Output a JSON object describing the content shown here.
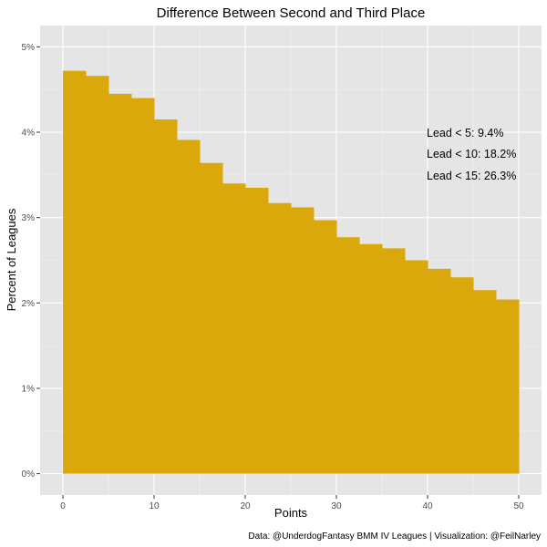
{
  "chart_data": {
    "type": "bar",
    "title": "Difference Between Second and Third Place",
    "xlabel": "Points",
    "ylabel": "Percent of Leagues",
    "caption": "Data: @UnderdogFantasy BMM IV Leagues | Visualization: @FeilNarley",
    "bin_width": 2.5,
    "x_bin_starts": [
      0,
      2.5,
      5,
      7.5,
      10,
      12.5,
      15,
      17.5,
      20,
      22.5,
      25,
      27.5,
      30,
      32.5,
      35,
      37.5,
      40,
      42.5,
      45,
      47.5
    ],
    "values": [
      4.72,
      4.66,
      4.45,
      4.4,
      4.15,
      3.91,
      3.64,
      3.4,
      3.35,
      3.17,
      3.12,
      2.97,
      2.77,
      2.69,
      2.64,
      2.5,
      2.4,
      2.3,
      2.15,
      2.04
    ],
    "xlim": [
      -2.5,
      52.5
    ],
    "ylim": [
      -0.25,
      5.25
    ],
    "x_ticks": [
      0,
      10,
      20,
      30,
      40,
      50
    ],
    "x_tick_labels": [
      "0",
      "10",
      "20",
      "30",
      "40",
      "50"
    ],
    "y_ticks": [
      0,
      1,
      2,
      3,
      4,
      5
    ],
    "y_tick_labels": [
      "0%",
      "1%",
      "2%",
      "3%",
      "4%",
      "5%"
    ],
    "grid": true,
    "bar_color": "#DAA80B",
    "panel_color": "#E5E5E5",
    "annotations": [
      "Lead < 5: 9.4%",
      "Lead < 10: 18.2%",
      "Lead < 15: 26.3%"
    ]
  }
}
